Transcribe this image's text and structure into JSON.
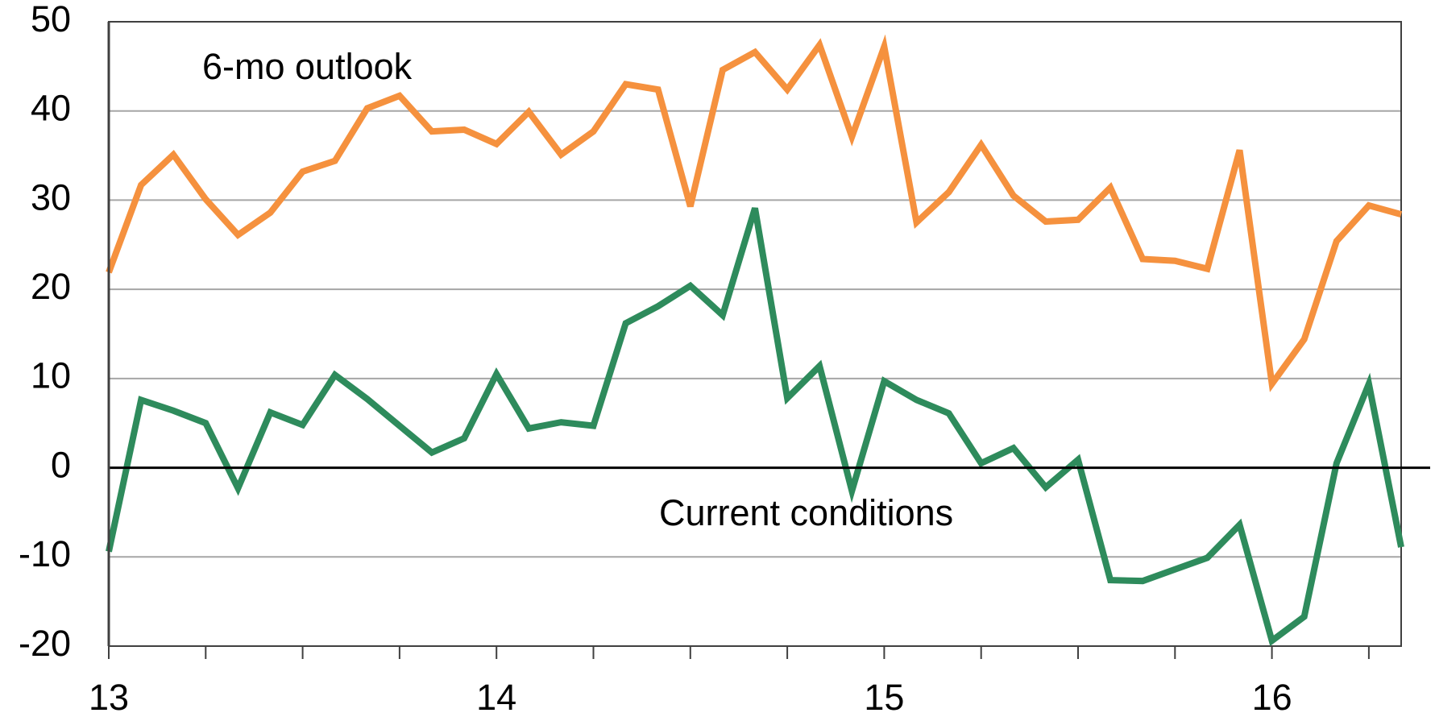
{
  "chart_data": {
    "type": "line",
    "categories": [
      "13",
      null,
      null,
      null,
      null,
      null,
      null,
      null,
      null,
      null,
      null,
      null,
      "14",
      null,
      null,
      null,
      null,
      null,
      null,
      null,
      null,
      null,
      null,
      null,
      "15",
      null,
      null,
      null,
      null,
      null,
      null,
      null,
      null,
      null,
      null,
      null,
      "16",
      null,
      null,
      null,
      null
    ],
    "series": [
      {
        "name": "6-mo outlook",
        "color": "#f5913e",
        "values": [
          21.9,
          31.7,
          35.1,
          30.1,
          26.1,
          28.6,
          33.2,
          34.4,
          40.3,
          41.7,
          37.7,
          37.9,
          36.3,
          39.9,
          35.1,
          37.7,
          43.0,
          42.4,
          29.3,
          44.6,
          46.6,
          42.4,
          47.4,
          37.1,
          47.2,
          27.5,
          30.9,
          36.2,
          30.5,
          27.6,
          27.8,
          31.4,
          23.4,
          23.2,
          22.3,
          35.6,
          9.4,
          14.4,
          25.4,
          29.4,
          28.4
        ]
      },
      {
        "name": "Current conditions",
        "color": "#2e8b5c",
        "values": [
          -9.4,
          7.6,
          6.4,
          5.0,
          -2.3,
          6.2,
          4.8,
          10.4,
          7.7,
          4.7,
          1.7,
          3.3,
          10.5,
          4.4,
          5.1,
          4.7,
          16.2,
          18.1,
          20.4,
          17.1,
          29.1,
          7.8,
          11.4,
          -2.6,
          9.7,
          7.6,
          6.1,
          0.5,
          2.2,
          -2.2,
          0.9,
          -12.6,
          -12.7,
          -11.4,
          -10.1,
          -6.4,
          -19.4,
          -16.7,
          0.5,
          9.4,
          -8.9
        ]
      }
    ],
    "ylim": [
      -20,
      50
    ],
    "yticks": [
      -20,
      -10,
      0,
      10,
      20,
      30,
      40,
      50
    ],
    "grid": true
  }
}
